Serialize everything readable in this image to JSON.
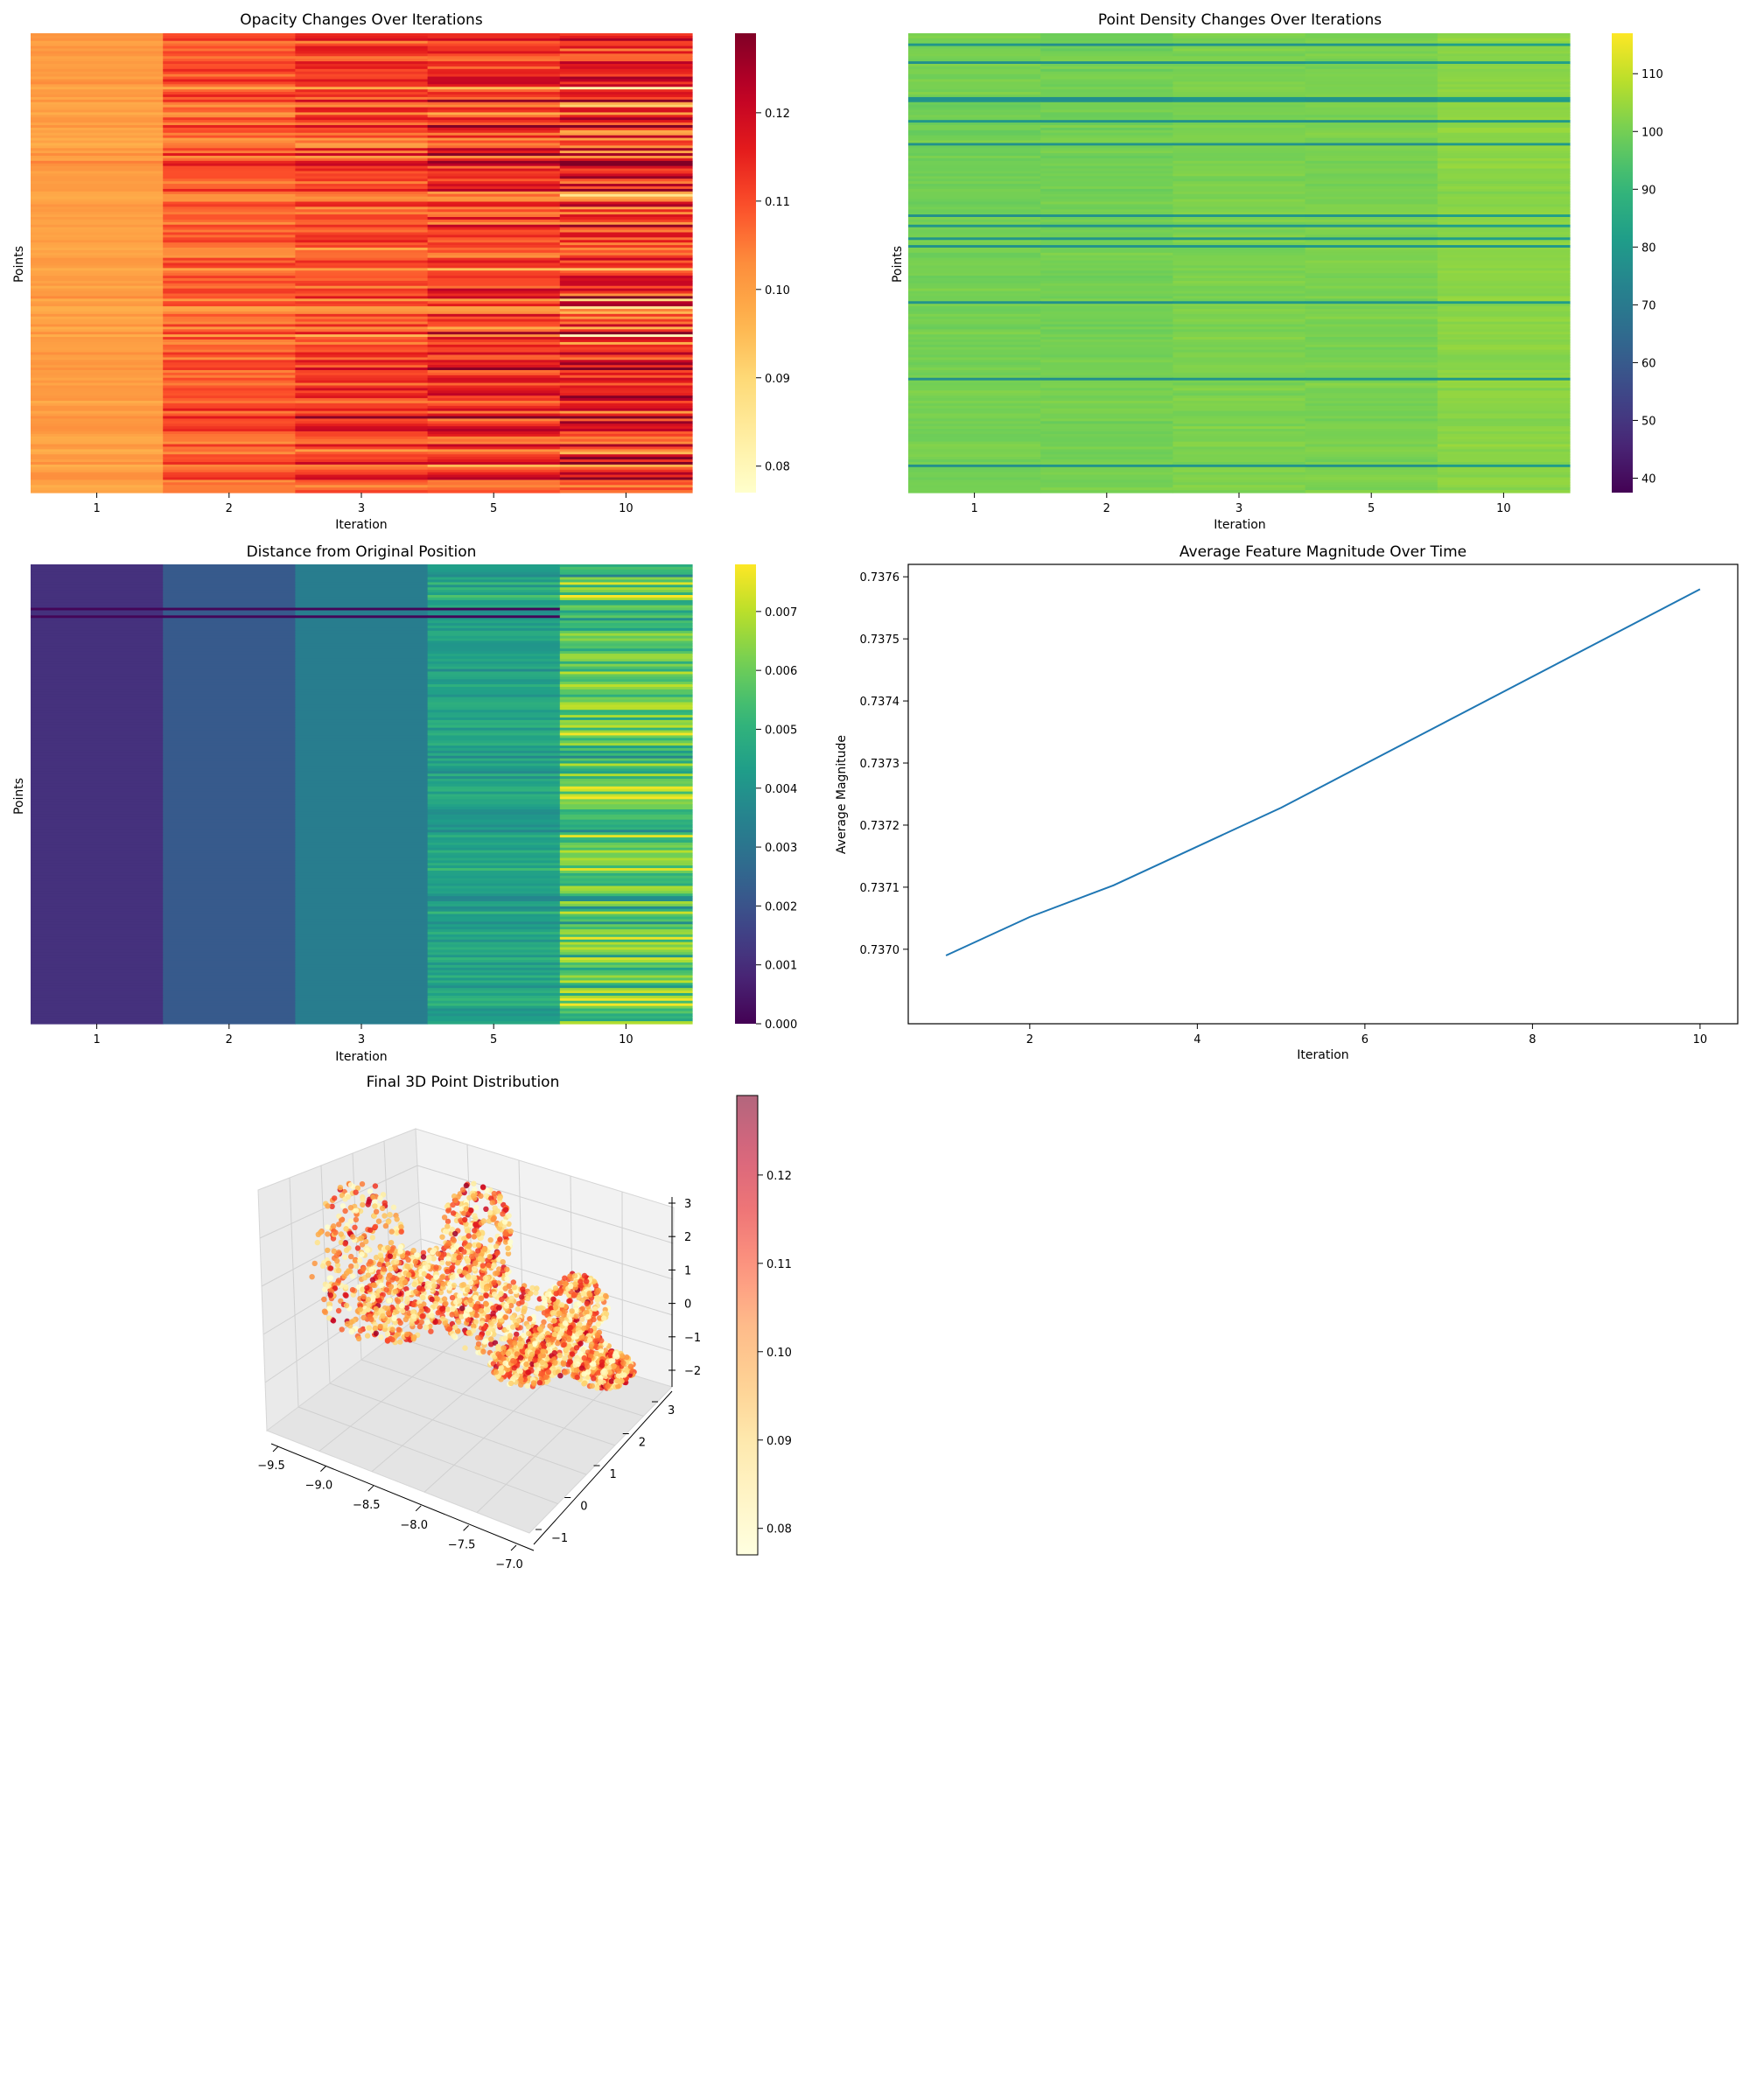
{
  "chart_data": [
    {
      "id": "opacity",
      "type": "heatmap",
      "title": "Opacity Changes Over Iterations",
      "xlabel": "Iteration",
      "ylabel": "Points",
      "categories": [
        "1",
        "2",
        "3",
        "5",
        "10"
      ],
      "colormap": "YlOrRd",
      "color_range": [
        0.077,
        0.129
      ],
      "colorbar_ticks": [
        0.08,
        0.09,
        0.1,
        0.11,
        0.12
      ],
      "colorbar_tick_labels": [
        "0.08",
        "0.09",
        "0.10",
        "0.11",
        "0.12"
      ],
      "column_mean": [
        0.1,
        0.108,
        0.111,
        0.112,
        0.113
      ],
      "column_spread": [
        0.003,
        0.007,
        0.01,
        0.013,
        0.019
      ]
    },
    {
      "id": "density",
      "type": "heatmap",
      "title": "Point Density Changes Over Iterations",
      "xlabel": "Iteration",
      "ylabel": "Points",
      "categories": [
        "1",
        "2",
        "3",
        "5",
        "10"
      ],
      "colormap": "viridis",
      "color_range": [
        37.5,
        117
      ],
      "colorbar_ticks": [
        40,
        50,
        60,
        70,
        80,
        90,
        100,
        110
      ],
      "colorbar_tick_labels": [
        "40",
        "50",
        "60",
        "70",
        "80",
        "90",
        "100",
        "110"
      ],
      "column_mean": [
        100,
        100,
        101,
        101,
        103
      ]
    },
    {
      "id": "distance",
      "type": "heatmap",
      "title": "Distance from Original Position",
      "xlabel": "Iteration",
      "ylabel": "Points",
      "categories": [
        "1",
        "2",
        "3",
        "5",
        "10"
      ],
      "colormap": "viridis",
      "color_range": [
        0,
        0.0078
      ],
      "colorbar_ticks": [
        0,
        0.001,
        0.002,
        0.003,
        0.004,
        0.005,
        0.006,
        0.007
      ],
      "colorbar_tick_labels": [
        "0.000",
        "0.001",
        "0.002",
        "0.003",
        "0.004",
        "0.005",
        "0.006",
        "0.007"
      ],
      "column_mean": [
        0.0011,
        0.0022,
        0.0033,
        0.0045,
        0.0058
      ],
      "column_spread": [
        0.0,
        0.0,
        0.0,
        0.0006,
        0.0016
      ]
    },
    {
      "id": "magnitude",
      "type": "line",
      "title": "Average Feature Magnitude Over Time",
      "xlabel": "Iteration",
      "ylabel": "Average Magnitude",
      "x": [
        1,
        2,
        3,
        5,
        10
      ],
      "y": [
        0.73699,
        0.737052,
        0.737103,
        0.737228,
        0.73758
      ],
      "xlim": [
        0.55,
        10.45
      ],
      "ylim": [
        0.73688,
        0.73762
      ],
      "xticks": [
        2,
        4,
        6,
        8,
        10
      ],
      "xtick_labels": [
        "2",
        "4",
        "6",
        "8",
        "10"
      ],
      "yticks": [
        0.737,
        0.7371,
        0.7372,
        0.7373,
        0.7374,
        0.7375,
        0.7376
      ],
      "ytick_labels": [
        "0.7370",
        "0.7371",
        "0.7372",
        "0.7373",
        "0.7374",
        "0.7375",
        "0.7376"
      ],
      "color": "#1f77b4"
    },
    {
      "id": "scatter3d",
      "type": "scatter",
      "title": "Final 3D Point Distribution",
      "colormap": "YlOrRd",
      "color_range": [
        0.077,
        0.129
      ],
      "colorbar_ticks": [
        0.08,
        0.09,
        0.1,
        0.11,
        0.12
      ],
      "colorbar_tick_labels": [
        "0.08",
        "0.09",
        "0.10",
        "0.11",
        "0.12"
      ],
      "x_ticks": [
        "−9.5",
        "−9.0",
        "−8.5",
        "−8.0",
        "−7.5",
        "−7.0"
      ],
      "y_ticks": [
        "−1",
        "0",
        "1",
        "2",
        "3"
      ],
      "z_ticks": [
        "3",
        "2",
        "1",
        "0",
        "−1",
        "−2"
      ]
    }
  ]
}
